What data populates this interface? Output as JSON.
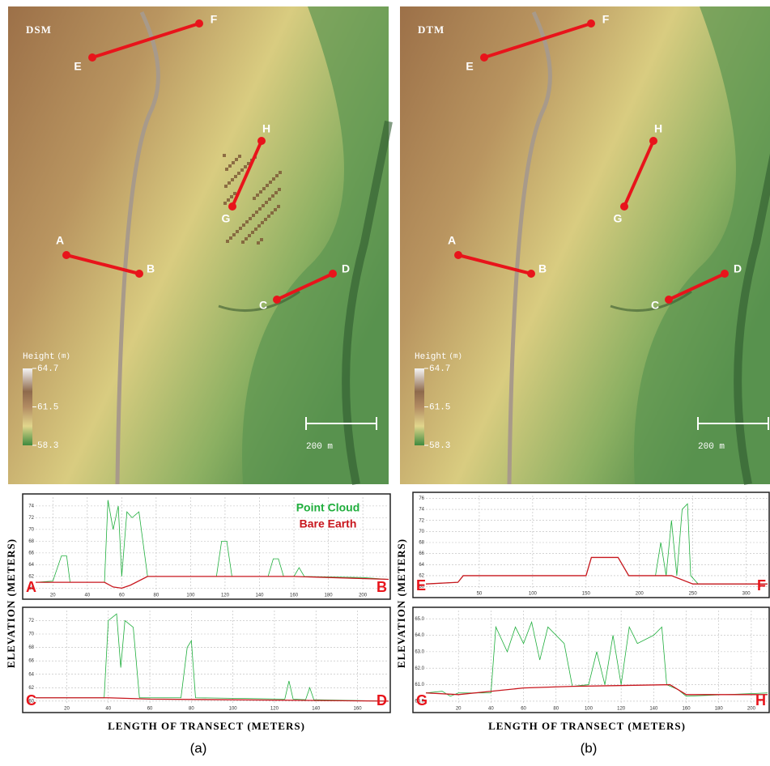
{
  "panels": [
    {
      "label": "(a)",
      "profile_y_title": "ELEVATION (METERS)",
      "profile_x_title": "LENGTH OF TRANSECT (METERS)",
      "map": {
        "title": "DSM",
        "scale_bar": "200 m",
        "colorbar": {
          "title": "Height",
          "unit": "(m)",
          "lim": [
            58.3,
            64.7
          ],
          "ticks": [
            64.7,
            61.5,
            58.3
          ]
        },
        "transects": [
          [
            "A",
            "B"
          ],
          [
            "C",
            "D"
          ],
          [
            "E",
            "F"
          ],
          [
            "G",
            "H"
          ]
        ]
      }
    },
    {
      "label": "(b)",
      "profile_y_title": "ELEVATION (METERS)",
      "profile_x_title": "LENGTH OF TRANSECT (METERS)",
      "map": {
        "title": "DTM",
        "scale_bar": "200 m",
        "colorbar": {
          "title": "Height",
          "unit": "(m)",
          "lim": [
            58.3,
            64.7
          ],
          "ticks": [
            64.7,
            61.5,
            58.3
          ]
        },
        "transects": [
          [
            "A",
            "B"
          ],
          [
            "C",
            "D"
          ],
          [
            "E",
            "F"
          ],
          [
            "G",
            "H"
          ]
        ]
      }
    }
  ],
  "chart_data": [
    {
      "type": "line",
      "start_label": "A",
      "end_label": "B",
      "legend": "top-right",
      "xlim": [
        10,
        215
      ],
      "xticks": [
        20,
        40,
        60,
        80,
        100,
        120,
        140,
        160,
        180,
        200
      ],
      "ylim": [
        59.5,
        75.5
      ],
      "yticks": [
        60,
        62,
        64,
        66,
        68,
        70,
        72,
        74
      ],
      "grid": true,
      "series": [
        {
          "name": "Point Cloud",
          "color": "#1fae3c",
          "x": [
            10,
            20,
            25,
            28,
            30,
            45,
            50,
            52,
            55,
            58,
            60,
            63,
            66,
            70,
            75,
            80,
            100,
            115,
            118,
            121,
            124,
            145,
            148,
            151,
            154,
            160,
            163,
            166,
            200,
            215
          ],
          "values": [
            61,
            61.2,
            65.5,
            65.5,
            61,
            61,
            61,
            75,
            70,
            74,
            62,
            73,
            72,
            73,
            62,
            62,
            62,
            62,
            68,
            68,
            62,
            62,
            65,
            65,
            62,
            62,
            63.5,
            62,
            61.8,
            61.5
          ]
        },
        {
          "name": "Bare Earth",
          "color": "#c8171e",
          "x": [
            10,
            30,
            50,
            55,
            60,
            65,
            75,
            100,
            160,
            215
          ],
          "values": [
            61,
            61,
            61,
            60.2,
            60,
            60.5,
            62,
            62,
            62,
            61.5
          ]
        }
      ]
    },
    {
      "type": "line",
      "start_label": "C",
      "end_label": "D",
      "xlim": [
        5,
        175
      ],
      "xticks": [
        20,
        40,
        60,
        80,
        100,
        120,
        140,
        160
      ],
      "ylim": [
        59.5,
        73.5
      ],
      "yticks": [
        60,
        62,
        64,
        66,
        68,
        70,
        72
      ],
      "grid": true,
      "series": [
        {
          "color": "#1fae3c",
          "x": [
            5,
            30,
            38,
            40,
            44,
            46,
            48,
            52,
            55,
            75,
            78,
            80,
            82,
            125,
            127,
            129,
            135,
            137,
            139,
            175
          ],
          "values": [
            60.5,
            60.5,
            60.5,
            72,
            73,
            65,
            72,
            71,
            60.5,
            60.5,
            68,
            69,
            60.5,
            60.3,
            63,
            60.3,
            60.2,
            62,
            60.2,
            60
          ]
        },
        {
          "color": "#c8171e",
          "x": [
            5,
            40,
            60,
            175
          ],
          "values": [
            60.5,
            60.5,
            60.3,
            60
          ]
        }
      ]
    },
    {
      "type": "line",
      "start_label": "E",
      "end_label": "F",
      "xlim": [
        0,
        320
      ],
      "xticks": [
        50,
        100,
        150,
        200,
        250,
        300
      ],
      "ylim": [
        59.5,
        76.5
      ],
      "yticks": [
        60,
        62,
        64,
        66,
        68,
        70,
        72,
        74,
        76
      ],
      "grid": true,
      "series": [
        {
          "color": "#1fae3c",
          "x": [
            0,
            30,
            35,
            150,
            155,
            180,
            190,
            215,
            220,
            225,
            230,
            235,
            240,
            245,
            248,
            255,
            320
          ],
          "values": [
            60.5,
            60.8,
            62,
            62,
            65.3,
            65.3,
            62,
            62,
            68,
            62,
            72,
            62,
            74,
            75,
            62,
            60.5,
            60.5
          ]
        },
        {
          "color": "#c8171e",
          "x": [
            0,
            30,
            35,
            150,
            155,
            180,
            190,
            230,
            250,
            320
          ],
          "values": [
            60.5,
            60.8,
            62,
            62,
            65.3,
            65.3,
            62,
            62,
            60.5,
            60.5
          ]
        }
      ]
    },
    {
      "type": "line",
      "start_label": "G",
      "end_label": "H",
      "xlim": [
        0,
        210
      ],
      "xticks": [
        20,
        40,
        60,
        80,
        100,
        120,
        140,
        160,
        180,
        200
      ],
      "ylim": [
        59.8,
        65.5
      ],
      "yticks": [
        {
          "value": 60,
          "label": "60.0"
        },
        {
          "value": 61,
          "label": "61.0"
        },
        {
          "value": 62,
          "label": "62.0"
        },
        {
          "value": 63,
          "label": "63.0"
        },
        {
          "value": 64,
          "label": "64.0"
        },
        {
          "value": 65,
          "label": "65.0"
        }
      ],
      "grid": true,
      "series": [
        {
          "color": "#1fae3c",
          "x": [
            0,
            10,
            15,
            20,
            40,
            43,
            50,
            55,
            60,
            65,
            70,
            75,
            85,
            90,
            100,
            105,
            110,
            115,
            120,
            125,
            130,
            140,
            145,
            148,
            155,
            160,
            210
          ],
          "values": [
            60.5,
            60.6,
            60.3,
            60.5,
            60.5,
            64.5,
            63,
            64.5,
            63.5,
            64.8,
            62.5,
            64.5,
            63.5,
            60.9,
            61,
            63,
            61,
            64,
            61,
            64.5,
            63.5,
            64,
            64.5,
            61,
            60.7,
            60.3,
            60.5
          ]
        },
        {
          "color": "#c8171e",
          "x": [
            0,
            20,
            40,
            60,
            90,
            150,
            160,
            210
          ],
          "values": [
            60.5,
            60.4,
            60.6,
            60.8,
            60.9,
            61,
            60.4,
            60.4
          ]
        }
      ]
    }
  ]
}
